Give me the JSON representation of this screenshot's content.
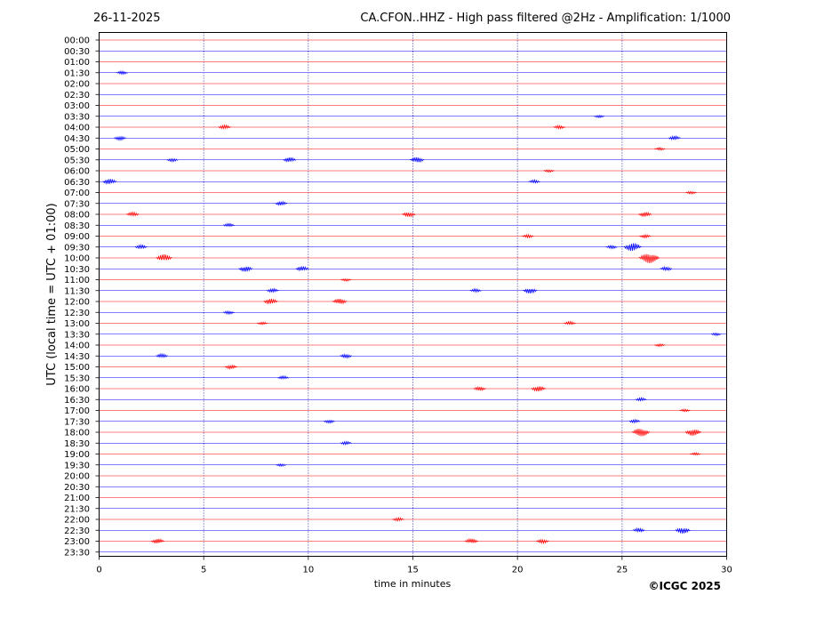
{
  "header": {
    "date": "26-11-2025",
    "title": "CA.CFON..HHZ - High pass filtered @2Hz - Amplification: 1/1000"
  },
  "copyright": "©ICGC 2025",
  "colors": {
    "trace_a": "#ff0000",
    "trace_b": "#0000ff",
    "frame": "#000000",
    "grid": "#00008b"
  },
  "chart_data": {
    "type": "line",
    "title": "CA.CFON..HHZ - High pass filtered @2Hz - Amplification: 1/1000",
    "xlabel": "time in minutes",
    "ylabel": "UTC (local time = UTC + 01:00)",
    "xlim": [
      0,
      30
    ],
    "x_ticks": [
      "0",
      "5",
      "10",
      "15",
      "20",
      "25",
      "30"
    ],
    "grid": "vertical dotted lines at 5, 10, 15, 20, 25",
    "rows": [
      "00:00",
      "00:30",
      "01:00",
      "01:30",
      "02:00",
      "02:30",
      "03:00",
      "03:30",
      "04:00",
      "04:30",
      "05:00",
      "05:30",
      "06:00",
      "06:30",
      "07:00",
      "07:30",
      "08:00",
      "08:30",
      "09:00",
      "09:30",
      "10:00",
      "10:30",
      "11:00",
      "11:30",
      "12:00",
      "12:30",
      "13:00",
      "13:30",
      "14:00",
      "14:30",
      "15:00",
      "15:30",
      "16:00",
      "16:30",
      "17:00",
      "17:30",
      "18:00",
      "18:30",
      "19:00",
      "19:30",
      "20:00",
      "20:30",
      "21:00",
      "21:30",
      "22:00",
      "22:30",
      "23:00",
      "23:30"
    ],
    "bursts": [
      {
        "row": "01:30",
        "minute": 1.1,
        "amp": 0.5
      },
      {
        "row": "03:30",
        "minute": 23.9,
        "amp": 0.4
      },
      {
        "row": "04:00",
        "minute": 6.0,
        "amp": 0.6
      },
      {
        "row": "04:00",
        "minute": 22.0,
        "amp": 0.5
      },
      {
        "row": "04:30",
        "minute": 1.0,
        "amp": 0.6
      },
      {
        "row": "04:30",
        "minute": 27.5,
        "amp": 0.6
      },
      {
        "row": "05:00",
        "minute": 26.8,
        "amp": 0.4
      },
      {
        "row": "05:30",
        "minute": 3.5,
        "amp": 0.5
      },
      {
        "row": "05:30",
        "minute": 9.1,
        "amp": 0.7
      },
      {
        "row": "05:30",
        "minute": 15.2,
        "amp": 0.8
      },
      {
        "row": "06:00",
        "minute": 21.5,
        "amp": 0.4
      },
      {
        "row": "06:30",
        "minute": 0.5,
        "amp": 0.8
      },
      {
        "row": "06:30",
        "minute": 20.8,
        "amp": 0.5
      },
      {
        "row": "07:00",
        "minute": 28.3,
        "amp": 0.4
      },
      {
        "row": "07:30",
        "minute": 8.7,
        "amp": 0.6
      },
      {
        "row": "08:00",
        "minute": 1.6,
        "amp": 0.6
      },
      {
        "row": "08:00",
        "minute": 14.8,
        "amp": 0.7
      },
      {
        "row": "08:00",
        "minute": 26.1,
        "amp": 0.7
      },
      {
        "row": "08:30",
        "minute": 6.2,
        "amp": 0.5
      },
      {
        "row": "09:00",
        "minute": 20.5,
        "amp": 0.5
      },
      {
        "row": "09:00",
        "minute": 26.1,
        "amp": 0.5
      },
      {
        "row": "09:30",
        "minute": 2.0,
        "amp": 0.6
      },
      {
        "row": "09:30",
        "minute": 24.5,
        "amp": 0.5
      },
      {
        "row": "09:30",
        "minute": 25.5,
        "amp": 1.2
      },
      {
        "row": "10:00",
        "minute": 3.1,
        "amp": 1.0
      },
      {
        "row": "10:00",
        "minute": 26.3,
        "amp": 1.5
      },
      {
        "row": "10:30",
        "minute": 7.0,
        "amp": 0.8
      },
      {
        "row": "10:30",
        "minute": 9.7,
        "amp": 0.7
      },
      {
        "row": "10:30",
        "minute": 27.1,
        "amp": 0.6
      },
      {
        "row": "11:00",
        "minute": 11.8,
        "amp": 0.4
      },
      {
        "row": "11:30",
        "minute": 8.3,
        "amp": 0.6
      },
      {
        "row": "11:30",
        "minute": 18.0,
        "amp": 0.5
      },
      {
        "row": "11:30",
        "minute": 20.6,
        "amp": 0.8
      },
      {
        "row": "12:00",
        "minute": 8.2,
        "amp": 0.8
      },
      {
        "row": "12:00",
        "minute": 11.5,
        "amp": 0.8
      },
      {
        "row": "12:30",
        "minute": 6.2,
        "amp": 0.5
      },
      {
        "row": "13:00",
        "minute": 7.8,
        "amp": 0.4
      },
      {
        "row": "13:00",
        "minute": 22.5,
        "amp": 0.5
      },
      {
        "row": "13:30",
        "minute": 29.5,
        "amp": 0.4
      },
      {
        "row": "14:00",
        "minute": 26.8,
        "amp": 0.4
      },
      {
        "row": "14:30",
        "minute": 3.0,
        "amp": 0.6
      },
      {
        "row": "14:30",
        "minute": 11.8,
        "amp": 0.6
      },
      {
        "row": "15:00",
        "minute": 6.3,
        "amp": 0.6
      },
      {
        "row": "15:30",
        "minute": 8.8,
        "amp": 0.5
      },
      {
        "row": "16:00",
        "minute": 18.2,
        "amp": 0.6
      },
      {
        "row": "16:00",
        "minute": 21.0,
        "amp": 0.8
      },
      {
        "row": "16:30",
        "minute": 25.9,
        "amp": 0.5
      },
      {
        "row": "17:00",
        "minute": 28.0,
        "amp": 0.4
      },
      {
        "row": "17:30",
        "minute": 11.0,
        "amp": 0.5
      },
      {
        "row": "17:30",
        "minute": 25.6,
        "amp": 0.5
      },
      {
        "row": "18:00",
        "minute": 25.9,
        "amp": 1.2
      },
      {
        "row": "18:00",
        "minute": 28.4,
        "amp": 1.0
      },
      {
        "row": "18:30",
        "minute": 11.8,
        "amp": 0.5
      },
      {
        "row": "19:00",
        "minute": 28.5,
        "amp": 0.4
      },
      {
        "row": "19:30",
        "minute": 8.7,
        "amp": 0.4
      },
      {
        "row": "22:00",
        "minute": 14.3,
        "amp": 0.5
      },
      {
        "row": "22:30",
        "minute": 25.8,
        "amp": 0.6
      },
      {
        "row": "22:30",
        "minute": 27.9,
        "amp": 0.9
      },
      {
        "row": "23:00",
        "minute": 2.8,
        "amp": 0.7
      },
      {
        "row": "23:00",
        "minute": 17.8,
        "amp": 0.7
      },
      {
        "row": "23:00",
        "minute": 21.2,
        "amp": 0.6
      }
    ]
  }
}
